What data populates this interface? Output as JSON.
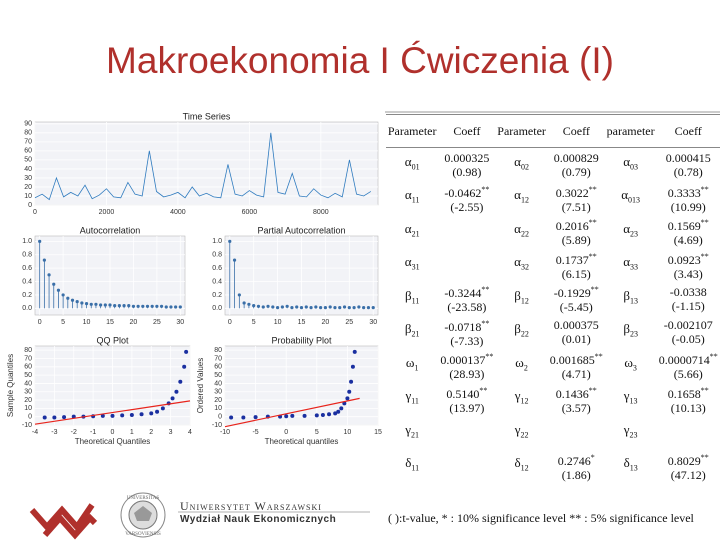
{
  "title": "Makroekonomia I Ćwiczenia (I)",
  "chart_data": [
    {
      "type": "line",
      "title": "Time Series",
      "xlim": [
        0,
        9600
      ],
      "ylim": [
        0,
        92
      ],
      "xticks": [
        0,
        2000,
        4000,
        6000,
        8000
      ],
      "yticks": [
        0,
        10,
        20,
        30,
        40,
        50,
        60,
        70,
        80,
        90
      ],
      "grid": true,
      "series": [
        {
          "color": "#2f7bbf",
          "x": [
            0,
            200,
            400,
            600,
            800,
            1000,
            1200,
            1400,
            1600,
            1800,
            2000,
            2200,
            2400,
            2600,
            2800,
            3000,
            3200,
            3400,
            3600,
            3800,
            4000,
            4200,
            4400,
            4600,
            4800,
            5000,
            5200,
            5400,
            5600,
            5800,
            6000,
            6200,
            6400,
            6600,
            6800,
            7000,
            7200,
            7400,
            7600,
            7800,
            8000,
            8200,
            8400,
            8600,
            8800,
            9000,
            9200,
            9400
          ],
          "values": [
            8,
            12,
            6,
            30,
            9,
            14,
            10,
            22,
            7,
            11,
            18,
            9,
            8,
            25,
            12,
            10,
            60,
            15,
            9,
            11,
            14,
            8,
            20,
            10,
            13,
            9,
            8,
            45,
            12,
            10,
            16,
            11,
            9,
            80,
            14,
            12,
            35,
            10,
            9,
            18,
            11,
            8,
            13,
            9,
            50,
            12,
            10,
            15
          ]
        }
      ]
    },
    {
      "type": "stem",
      "title": "Autocorrelation",
      "xlim": [
        -1,
        31
      ],
      "ylim": [
        -0.1,
        1.08
      ],
      "xticks": [
        0,
        5,
        10,
        15,
        20,
        25,
        30
      ],
      "yticks": [
        {
          "value": 0,
          "label": "0.0"
        },
        0.2,
        0.4,
        0.6,
        0.8,
        {
          "value": 1,
          "label": "1.0"
        }
      ],
      "grid": true,
      "series": [
        {
          "color": "#3a6fa8",
          "x": [
            0,
            1,
            2,
            3,
            4,
            5,
            6,
            7,
            8,
            9,
            10,
            11,
            12,
            13,
            14,
            15,
            16,
            17,
            18,
            19,
            20,
            21,
            22,
            23,
            24,
            25,
            26,
            27,
            28,
            29,
            30
          ],
          "values": [
            1.0,
            0.72,
            0.5,
            0.36,
            0.27,
            0.2,
            0.15,
            0.12,
            0.1,
            0.08,
            0.07,
            0.06,
            0.06,
            0.05,
            0.05,
            0.05,
            0.04,
            0.04,
            0.04,
            0.04,
            0.03,
            0.03,
            0.03,
            0.03,
            0.03,
            0.03,
            0.03,
            0.02,
            0.02,
            0.02,
            0.02
          ]
        }
      ]
    },
    {
      "type": "stem",
      "title": "Partial Autocorrelation",
      "xlim": [
        -1,
        31
      ],
      "ylim": [
        -0.1,
        1.08
      ],
      "xticks": [
        0,
        5,
        10,
        15,
        20,
        25,
        30
      ],
      "yticks": [
        {
          "value": 0,
          "label": "0.0"
        },
        0.2,
        0.4,
        0.6,
        0.8,
        {
          "value": 1,
          "label": "1.0"
        }
      ],
      "grid": true,
      "series": [
        {
          "color": "#3a6fa8",
          "x": [
            0,
            1,
            2,
            3,
            4,
            5,
            6,
            7,
            8,
            9,
            10,
            11,
            12,
            13,
            14,
            15,
            16,
            17,
            18,
            19,
            20,
            21,
            22,
            23,
            24,
            25,
            26,
            27,
            28,
            29,
            30
          ],
          "values": [
            1.0,
            0.72,
            0.2,
            0.08,
            0.06,
            0.04,
            0.03,
            0.02,
            0.03,
            0.02,
            0.01,
            0.02,
            0.03,
            0.01,
            0.02,
            0.01,
            0.02,
            0.01,
            0.02,
            0.01,
            0.01,
            0.02,
            0.01,
            0.01,
            0.02,
            0.01,
            0.01,
            0.02,
            0.01,
            0.01,
            0.01
          ]
        }
      ]
    },
    {
      "type": "scatter",
      "title": "QQ Plot",
      "xlabel": "Theoretical Quantiles",
      "ylabel": "Sample Quantiles",
      "xlim": [
        -4,
        4
      ],
      "ylim": [
        -10,
        85
      ],
      "xticks": [
        -4,
        -3,
        -2,
        -1,
        0,
        1,
        2,
        3,
        4
      ],
      "yticks": [
        -10,
        0,
        10,
        20,
        30,
        40,
        50,
        60,
        70,
        80
      ],
      "grid": true,
      "series": [
        {
          "color": "#1a2fa0",
          "x": [
            -3.5,
            -3,
            -2.5,
            -2,
            -1.5,
            -1,
            -0.5,
            0,
            0.5,
            1,
            1.5,
            2,
            2.3,
            2.6,
            2.9,
            3.1,
            3.3,
            3.5,
            3.7,
            3.8
          ],
          "values": [
            -1,
            -1,
            -0.5,
            0,
            0,
            0.5,
            1,
            1,
            1.5,
            2,
            3,
            4,
            6,
            10,
            16,
            22,
            30,
            42,
            60,
            78
          ]
        },
        {
          "color": "#e8241c",
          "style": "line",
          "x": [
            -4,
            4
          ],
          "values": [
            -9,
            19
          ]
        }
      ]
    },
    {
      "type": "scatter",
      "title": "Probability Plot",
      "xlabel": "Theoretical quantiles",
      "ylabel": "Ordered Values",
      "xlim": [
        -10,
        15
      ],
      "ylim": [
        -10,
        85
      ],
      "xticks": [
        -10,
        -5,
        0,
        5,
        10,
        15
      ],
      "yticks": [
        -10,
        0,
        10,
        20,
        30,
        40,
        50,
        60,
        70,
        80
      ],
      "grid": true,
      "series": [
        {
          "color": "#1a2fa0",
          "x": [
            -9,
            -7,
            -5,
            -3,
            -1,
            0,
            1,
            3,
            5,
            6,
            7,
            8,
            8.5,
            9,
            9.5,
            10,
            10.3,
            10.6,
            10.9,
            11.2
          ],
          "values": [
            -1,
            -1,
            -0.5,
            0,
            0,
            0.5,
            1,
            1,
            1.5,
            2,
            3,
            4,
            6,
            10,
            16,
            22,
            30,
            42,
            60,
            78
          ]
        },
        {
          "color": "#e8241c",
          "style": "line",
          "x": [
            -10,
            12
          ],
          "values": [
            -12,
            22
          ]
        }
      ]
    }
  ],
  "table": {
    "header": [
      "Parameter",
      "Coeff",
      "Parameter",
      "Coeff",
      "parameter",
      "Coeff"
    ],
    "rows": [
      [
        {
          "sym": "α",
          "sub": "01"
        },
        {
          "coef": "0.000325",
          "t": "(0.98)"
        },
        {
          "sym": "α",
          "sub": "02"
        },
        {
          "coef": "0.000829",
          "t": "(0.79)"
        },
        {
          "sym": "α",
          "sub": "03"
        },
        {
          "coef": "0.000415",
          "t": "(0.78)"
        }
      ],
      [
        {
          "sym": "α",
          "sub": "11"
        },
        {
          "coef": "-0.0462",
          "stars": "**",
          "t": "(-2.55)"
        },
        {
          "sym": "α",
          "sub": "12"
        },
        {
          "coef": "0.3022",
          "stars": "**",
          "t": "(7.51)"
        },
        {
          "sym": "α",
          "sub": "013"
        },
        {
          "coef": "0.3333",
          "stars": "**",
          "t": "(10.99)"
        }
      ],
      [
        {
          "sym": "α",
          "sub": "21"
        },
        null,
        {
          "sym": "α",
          "sub": "22"
        },
        {
          "coef": "0.2016",
          "stars": "**",
          "t": "(5.89)"
        },
        {
          "sym": "α",
          "sub": "23"
        },
        {
          "coef": "0.1569",
          "stars": "**",
          "t": "(4.69)"
        }
      ],
      [
        {
          "sym": "α",
          "sub": "31"
        },
        null,
        {
          "sym": "α",
          "sub": "32"
        },
        {
          "coef": "0.1737",
          "stars": "**",
          "t": "(6.15)"
        },
        {
          "sym": "α",
          "sub": "33"
        },
        {
          "coef": "0.0923",
          "stars": "**",
          "t": "(3.43)"
        }
      ],
      [
        {
          "sym": "β",
          "sub": "11"
        },
        {
          "coef": "-0.3244",
          "stars": "**",
          "t": "(-23.58)"
        },
        {
          "sym": "β",
          "sub": "12"
        },
        {
          "coef": "-0.1929",
          "stars": "**",
          "t": "(-5.45)"
        },
        {
          "sym": "β",
          "sub": "13"
        },
        {
          "coef": "-0.0338",
          "t": "(-1.15)"
        }
      ],
      [
        {
          "sym": "β",
          "sub": "21"
        },
        {
          "coef": "-0.0718",
          "stars": "**",
          "t": "(-7.33)"
        },
        {
          "sym": "β",
          "sub": "22"
        },
        {
          "coef": "0.000375",
          "t": "(0.01)"
        },
        {
          "sym": "β",
          "sub": "23"
        },
        {
          "coef": "-0.002107",
          "t": "(-0.05)"
        }
      ],
      [
        {
          "sym": "ω",
          "sub": "1"
        },
        {
          "coef": "0.000137",
          "stars": "**",
          "t": "(28.93)"
        },
        {
          "sym": "ω",
          "sub": "2"
        },
        {
          "coef": "0.001685",
          "stars": "**",
          "t": "(4.71)"
        },
        {
          "sym": "ω",
          "sub": "3"
        },
        {
          "coef": "0.0000714",
          "stars": "**",
          "t": "(5.66)"
        }
      ],
      [
        {
          "sym": "γ",
          "sub": "11"
        },
        {
          "coef": "0.5140",
          "stars": "**",
          "t": "(13.97)"
        },
        {
          "sym": "γ",
          "sub": "12"
        },
        {
          "coef": "0.1436",
          "stars": "**",
          "t": "(3.57)"
        },
        {
          "sym": "γ",
          "sub": "13"
        },
        {
          "coef": "0.1658",
          "stars": "**",
          "t": "(10.13)"
        }
      ],
      [
        {
          "sym": "γ",
          "sub": "21"
        },
        null,
        {
          "sym": "γ",
          "sub": "22"
        },
        null,
        {
          "sym": "γ",
          "sub": "23"
        },
        null
      ],
      [
        {
          "sym": "δ",
          "sub": "11"
        },
        null,
        {
          "sym": "δ",
          "sub": "12"
        },
        {
          "coef": "0.2746",
          "stars": "*",
          "t": "(1.86)"
        },
        {
          "sym": "δ",
          "sub": "13"
        },
        {
          "coef": "0.8029",
          "stars": "**",
          "t": "(47.12)"
        }
      ]
    ],
    "note": "( ):t-value, * : 10% significance level ** : 5% significance level"
  },
  "footer": {
    "university": "Uniwersytet Warszawski",
    "faculty": "Wydział Nauk Ekonomicznych",
    "seal_top": "UNIVERSITAS",
    "seal_bottom": "VARSOVIENSIS"
  }
}
